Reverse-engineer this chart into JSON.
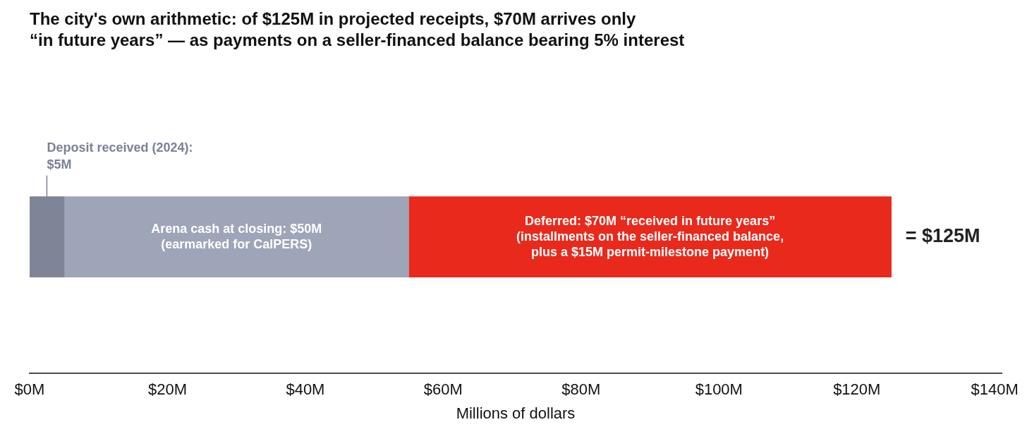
{
  "chart_data": {
    "type": "bar",
    "orientation": "horizontal",
    "stacked": true,
    "title": "The city's own arithmetic: of $125M in projected receipts, $70M arrives only\n“in future years” — as payments on a seller-financed balance bearing 5% interest",
    "xlabel": "Millions of dollars",
    "categories": [
      null
    ],
    "series": [
      {
        "color": "#7f8597",
        "values": [
          5
        ]
      },
      {
        "color": "#9ea5b8",
        "values": [
          50
        ],
        "value_labels": [
          "Arena cash at closing: $50M\n(earmarked for CalPERS)"
        ]
      },
      {
        "color": "#e8291c",
        "values": [
          70
        ],
        "value_labels": [
          "Deferred: $70M “received in future years”\n(installments on the seller-financed balance,\nplus a $15M permit-milestone payment)"
        ]
      }
    ],
    "totals": [
      "= $125M"
    ],
    "annotations": [
      "Deposit received (2024):\n$5M"
    ],
    "xlim": [
      0,
      141
    ],
    "xticks": [
      {
        "value": 0,
        "label": "$0M"
      },
      {
        "value": 20,
        "label": "$20M"
      },
      {
        "value": 40,
        "label": "$40M"
      },
      {
        "value": 60,
        "label": "$60M"
      },
      {
        "value": 80,
        "label": "$80M"
      },
      {
        "value": 100,
        "label": "$100M"
      },
      {
        "value": 120,
        "label": "$120M"
      },
      {
        "value": 140,
        "label": "$140M"
      }
    ],
    "tick_labels": "x",
    "grid": false,
    "legend": false
  }
}
